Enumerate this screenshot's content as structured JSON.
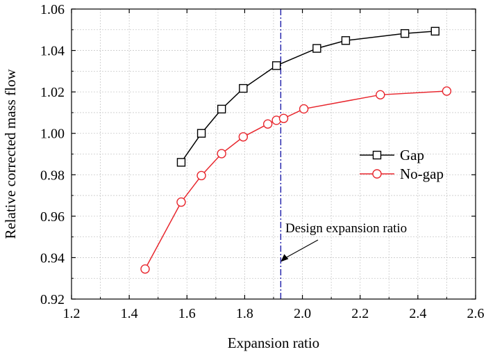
{
  "chart_data": {
    "type": "line",
    "xlabel": "Expansion ratio",
    "ylabel": "Relative corrected mass flow",
    "xlim": [
      1.2,
      2.6
    ],
    "ylim": [
      0.92,
      1.06
    ],
    "x_ticks": [
      "1.2",
      "1.4",
      "1.6",
      "1.8",
      "2.0",
      "2.2",
      "2.4",
      "2.6"
    ],
    "y_ticks": [
      "0.92",
      "0.94",
      "0.96",
      "0.98",
      "1.00",
      "1.02",
      "1.04",
      "1.06"
    ],
    "grid": true,
    "legend_position": "center-right",
    "series": [
      {
        "name": "Gap",
        "color": "#000000",
        "marker": "square",
        "x": [
          1.58,
          1.65,
          1.72,
          1.795,
          1.91,
          2.05,
          2.15,
          2.355,
          2.46
        ],
        "y": [
          0.986,
          1.0,
          1.0117,
          1.0217,
          1.0327,
          1.041,
          1.0448,
          1.0482,
          1.0493
        ]
      },
      {
        "name": "No-gap",
        "color": "#e8262d",
        "marker": "circle",
        "x": [
          1.455,
          1.58,
          1.65,
          1.72,
          1.795,
          1.88,
          1.91,
          1.935,
          2.005,
          2.27,
          2.5
        ],
        "y": [
          0.9345,
          0.9668,
          0.9796,
          0.9902,
          0.9983,
          1.0045,
          1.0063,
          1.0072,
          1.0118,
          1.0186,
          1.0204
        ]
      }
    ],
    "reference_line": {
      "x": 1.925,
      "style": "dash-dot",
      "color": "#1a1aa8"
    },
    "annotation": {
      "text": "Design expansion ratio",
      "arrow_to_x": 1.925,
      "arrow_to_y": 0.938
    }
  }
}
